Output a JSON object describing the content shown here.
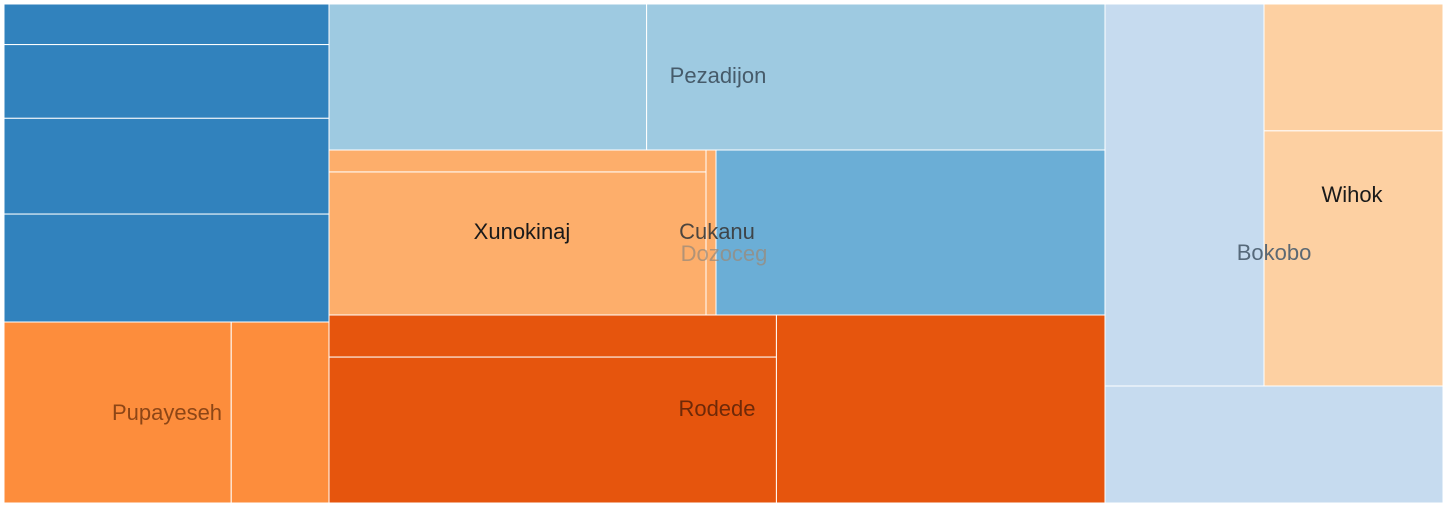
{
  "chart_data": {
    "type": "treemap",
    "title": "",
    "colors": {
      "tile_border": "#ffffff",
      "label_dark": "#1a1a1a",
      "label_muted": "#3d4f5e"
    },
    "groups": [
      {
        "name": "",
        "color": "#3182bd",
        "children": [
          {
            "name": "",
            "value": 13350
          },
          {
            "name": "",
            "value": 24250
          },
          {
            "name": "",
            "value": 31500
          },
          {
            "name": "",
            "value": 35500
          }
        ]
      },
      {
        "name": "Pupayeseh",
        "color": "#fd8d3c",
        "children": [
          {
            "name": "",
            "value": 41250
          },
          {
            "name": "",
            "value": 17750
          }
        ]
      },
      {
        "name": "Pezadijon",
        "color": "#9ecae1",
        "children": [
          {
            "name": "",
            "value": 46250
          },
          {
            "name": "",
            "value": 66750
          }
        ]
      },
      {
        "name": "Xunokinaj",
        "color": "#fdae6b",
        "children": [
          {
            "name": "",
            "value": 8250
          },
          {
            "name": "",
            "value": 53750
          }
        ]
      },
      {
        "name": "Cukanu",
        "color": "#fdae6b",
        "children": [
          {
            "name": "",
            "value": 1500
          }
        ]
      },
      {
        "name": "Dozoceg",
        "color": "#6baed6",
        "children": [
          {
            "name": "",
            "value": 64500
          }
        ]
      },
      {
        "name": "Rodede",
        "color": "#e6550d",
        "children": [
          {
            "name": "",
            "value": 18750
          },
          {
            "name": "",
            "value": 65000
          },
          {
            "name": "",
            "value": 61500
          }
        ]
      },
      {
        "name": "Bokobo",
        "color": "#c6dbef",
        "children": [
          {
            "name": "",
            "value": 60500
          },
          {
            "name": "",
            "value": 39500
          }
        ]
      },
      {
        "name": "Wihok",
        "color": "#fdd0a2",
        "children": [
          {
            "name": "",
            "value": 22250
          },
          {
            "name": "",
            "value": 44750
          }
        ]
      }
    ]
  }
}
